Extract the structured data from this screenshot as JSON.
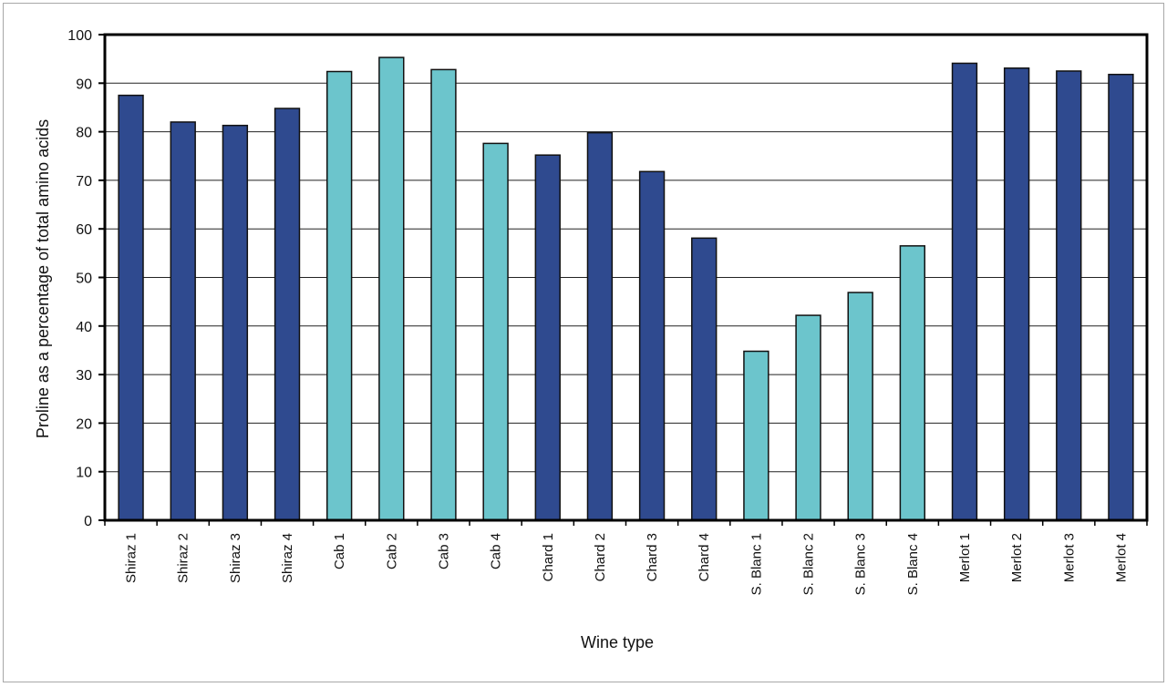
{
  "chart_data": {
    "type": "bar",
    "title": "",
    "xlabel": "Wine type",
    "ylabel": "Proline as a percentage of total amino acids",
    "ylim": [
      0,
      100
    ],
    "yticks": [
      0,
      10,
      20,
      30,
      40,
      50,
      60,
      70,
      80,
      90,
      100
    ],
    "grid": "horizontal",
    "legend": "none",
    "categories": [
      "Shiraz 1",
      "Shiraz 2",
      "Shiraz 3",
      "Shiraz 4",
      "Cab 1",
      "Cab 2",
      "Cab 3",
      "Cab 4",
      "Chard 1",
      "Chard 2",
      "Chard 3",
      "Chard 4",
      "S. Blanc 1",
      "S. Blanc 2",
      "S. Blanc 3",
      "S. Blanc 4",
      "Merlot 1",
      "Merlot 2",
      "Merlot 3",
      "Merlot 4"
    ],
    "values": [
      87.5,
      82,
      81.3,
      84.8,
      92.4,
      95.3,
      92.8,
      77.6,
      75.2,
      79.8,
      71.8,
      58.1,
      34.8,
      42.2,
      46.9,
      56.5,
      94.1,
      93.1,
      92.5,
      91.8
    ],
    "bar_colors": [
      "#2f4a8f",
      "#2f4a8f",
      "#2f4a8f",
      "#2f4a8f",
      "#6cc5cc",
      "#6cc5cc",
      "#6cc5cc",
      "#6cc5cc",
      "#2f4a8f",
      "#2f4a8f",
      "#2f4a8f",
      "#2f4a8f",
      "#6cc5cc",
      "#6cc5cc",
      "#6cc5cc",
      "#6cc5cc",
      "#2f4a8f",
      "#2f4a8f",
      "#2f4a8f",
      "#2f4a8f"
    ],
    "colors": {
      "dark_bar": "#2f4a8f",
      "light_bar": "#6cc5cc",
      "bar_outline": "#111111",
      "frame": "#000000",
      "gridline": "#222222"
    }
  }
}
